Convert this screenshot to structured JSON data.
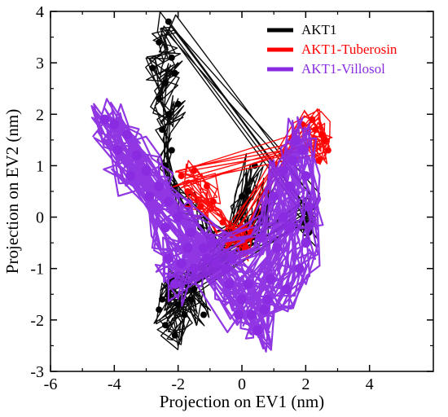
{
  "chart_data": {
    "type": "scatter",
    "title": "",
    "xlabel": "Projection on EV1 (nm)",
    "ylabel": "Projection on EV2 (nm)",
    "xlim": [
      -6,
      6
    ],
    "ylim": [
      -3,
      4
    ],
    "x_ticks": [
      -6,
      -4,
      -2,
      0,
      2,
      4
    ],
    "y_ticks": [
      -3,
      -2,
      -1,
      0,
      1,
      2,
      3,
      4
    ],
    "x_tick_labels": [
      "-6",
      "-4",
      "-2",
      "0",
      "2",
      "4"
    ],
    "y_tick_labels": [
      "-3",
      "-2",
      "-1",
      "0",
      "1",
      "2",
      "3",
      "4"
    ],
    "grid": false,
    "legend_position": "top-right",
    "series": [
      {
        "name": "AKT1",
        "color": "#000000",
        "points": [
          [
            -2.3,
            3.8
          ],
          [
            -2.6,
            3.4
          ],
          [
            -2.2,
            3.1
          ],
          [
            -2.8,
            2.9
          ],
          [
            -2.4,
            2.6
          ],
          [
            -2.1,
            2.8
          ],
          [
            -2.6,
            2.3
          ],
          [
            -2.3,
            2.0
          ],
          [
            -2.0,
            2.2
          ],
          [
            -2.5,
            1.7
          ],
          [
            -2.2,
            1.3
          ],
          [
            -2.4,
            1.0
          ],
          [
            -2.1,
            0.6
          ],
          [
            -1.7,
            0.2
          ],
          [
            -1.3,
            -0.2
          ],
          [
            -0.8,
            -0.5
          ],
          [
            -0.3,
            -0.3
          ],
          [
            0.0,
            0.4
          ],
          [
            0.4,
            1.0
          ],
          [
            0.2,
            0.5
          ],
          [
            -0.1,
            0.0
          ],
          [
            0.3,
            -0.4
          ],
          [
            0.6,
            -0.1
          ],
          [
            0.8,
            0.5
          ],
          [
            0.5,
            0.1
          ],
          [
            0.1,
            -0.3
          ],
          [
            -0.6,
            -0.8
          ],
          [
            -1.2,
            -1.1
          ],
          [
            -1.7,
            -1.3
          ],
          [
            -2.0,
            -1.7
          ],
          [
            -2.4,
            -2.1
          ],
          [
            -2.1,
            -2.3
          ],
          [
            -1.8,
            -1.9
          ],
          [
            -2.3,
            -1.5
          ],
          [
            -2.6,
            -1.8
          ],
          [
            -1.6,
            -1.6
          ],
          [
            -1.2,
            -1.9
          ],
          [
            -1.5,
            -1.4
          ],
          [
            -2.2,
            -1.2
          ],
          [
            -2.5,
            -1.6
          ],
          [
            2.0,
            0.1
          ],
          [
            2.1,
            -0.3
          ],
          [
            1.9,
            -0.1
          ],
          [
            2.2,
            0.2
          ]
        ]
      },
      {
        "name": "AKT1-Tuberosin",
        "color": "#ff0000",
        "points": [
          [
            -1.9,
            0.8
          ],
          [
            -1.5,
            0.9
          ],
          [
            -1.1,
            0.6
          ],
          [
            -0.9,
            0.3
          ],
          [
            -1.3,
            0.2
          ],
          [
            -1.7,
            0.5
          ],
          [
            -0.6,
            -0.1
          ],
          [
            -0.2,
            -0.4
          ],
          [
            0.1,
            -0.6
          ],
          [
            0.3,
            -0.3
          ],
          [
            -0.4,
            -0.5
          ],
          [
            0.0,
            -0.2
          ],
          [
            1.9,
            1.8
          ],
          [
            2.2,
            1.9
          ],
          [
            2.5,
            1.6
          ],
          [
            2.7,
            1.3
          ],
          [
            2.4,
            1.1
          ],
          [
            2.1,
            1.4
          ],
          [
            2.3,
            1.7
          ],
          [
            2.6,
            1.5
          ]
        ]
      },
      {
        "name": "AKT1-Villosol",
        "color": "#8a2be2",
        "points": [
          [
            -4.3,
            1.9
          ],
          [
            -4.0,
            1.8
          ],
          [
            -3.6,
            1.6
          ],
          [
            -3.3,
            1.2
          ],
          [
            -3.0,
            0.9
          ],
          [
            -2.6,
            0.6
          ],
          [
            -2.3,
            0.3
          ],
          [
            -2.0,
            0.0
          ],
          [
            -1.6,
            -0.3
          ],
          [
            -1.2,
            -0.6
          ],
          [
            -0.8,
            -0.9
          ],
          [
            -0.4,
            -1.3
          ],
          [
            0.0,
            -1.6
          ],
          [
            0.3,
            -1.9
          ],
          [
            0.5,
            -2.2
          ],
          [
            0.7,
            -1.8
          ],
          [
            0.9,
            -1.2
          ],
          [
            1.1,
            -0.6
          ],
          [
            1.3,
            0.0
          ],
          [
            1.5,
            0.6
          ],
          [
            1.6,
            1.1
          ],
          [
            1.7,
            1.5
          ],
          [
            1.9,
            1.3
          ],
          [
            2.0,
            0.8
          ],
          [
            2.1,
            0.2
          ],
          [
            2.0,
            -0.5
          ],
          [
            1.8,
            -1.0
          ],
          [
            1.4,
            -1.4
          ],
          [
            0.8,
            -1.6
          ],
          [
            0.2,
            -1.3
          ],
          [
            -0.5,
            -1.0
          ],
          [
            -1.1,
            -0.8
          ],
          [
            -1.7,
            -0.6
          ],
          [
            -2.3,
            -0.8
          ],
          [
            -2.1,
            -1.3
          ],
          [
            -1.5,
            -1.0
          ],
          [
            -0.9,
            -0.5
          ],
          [
            -0.3,
            -0.8
          ],
          [
            -3.9,
            1.3
          ],
          [
            -3.5,
            0.8
          ],
          [
            -2.9,
            0.4
          ],
          [
            -2.4,
            -0.2
          ],
          [
            -1.9,
            -0.9
          ],
          [
            0.6,
            -0.4
          ],
          [
            1.0,
            0.4
          ],
          [
            1.3,
            0.9
          ],
          [
            1.5,
            -0.2
          ],
          [
            -0.1,
            -1.9
          ]
        ]
      }
    ]
  }
}
